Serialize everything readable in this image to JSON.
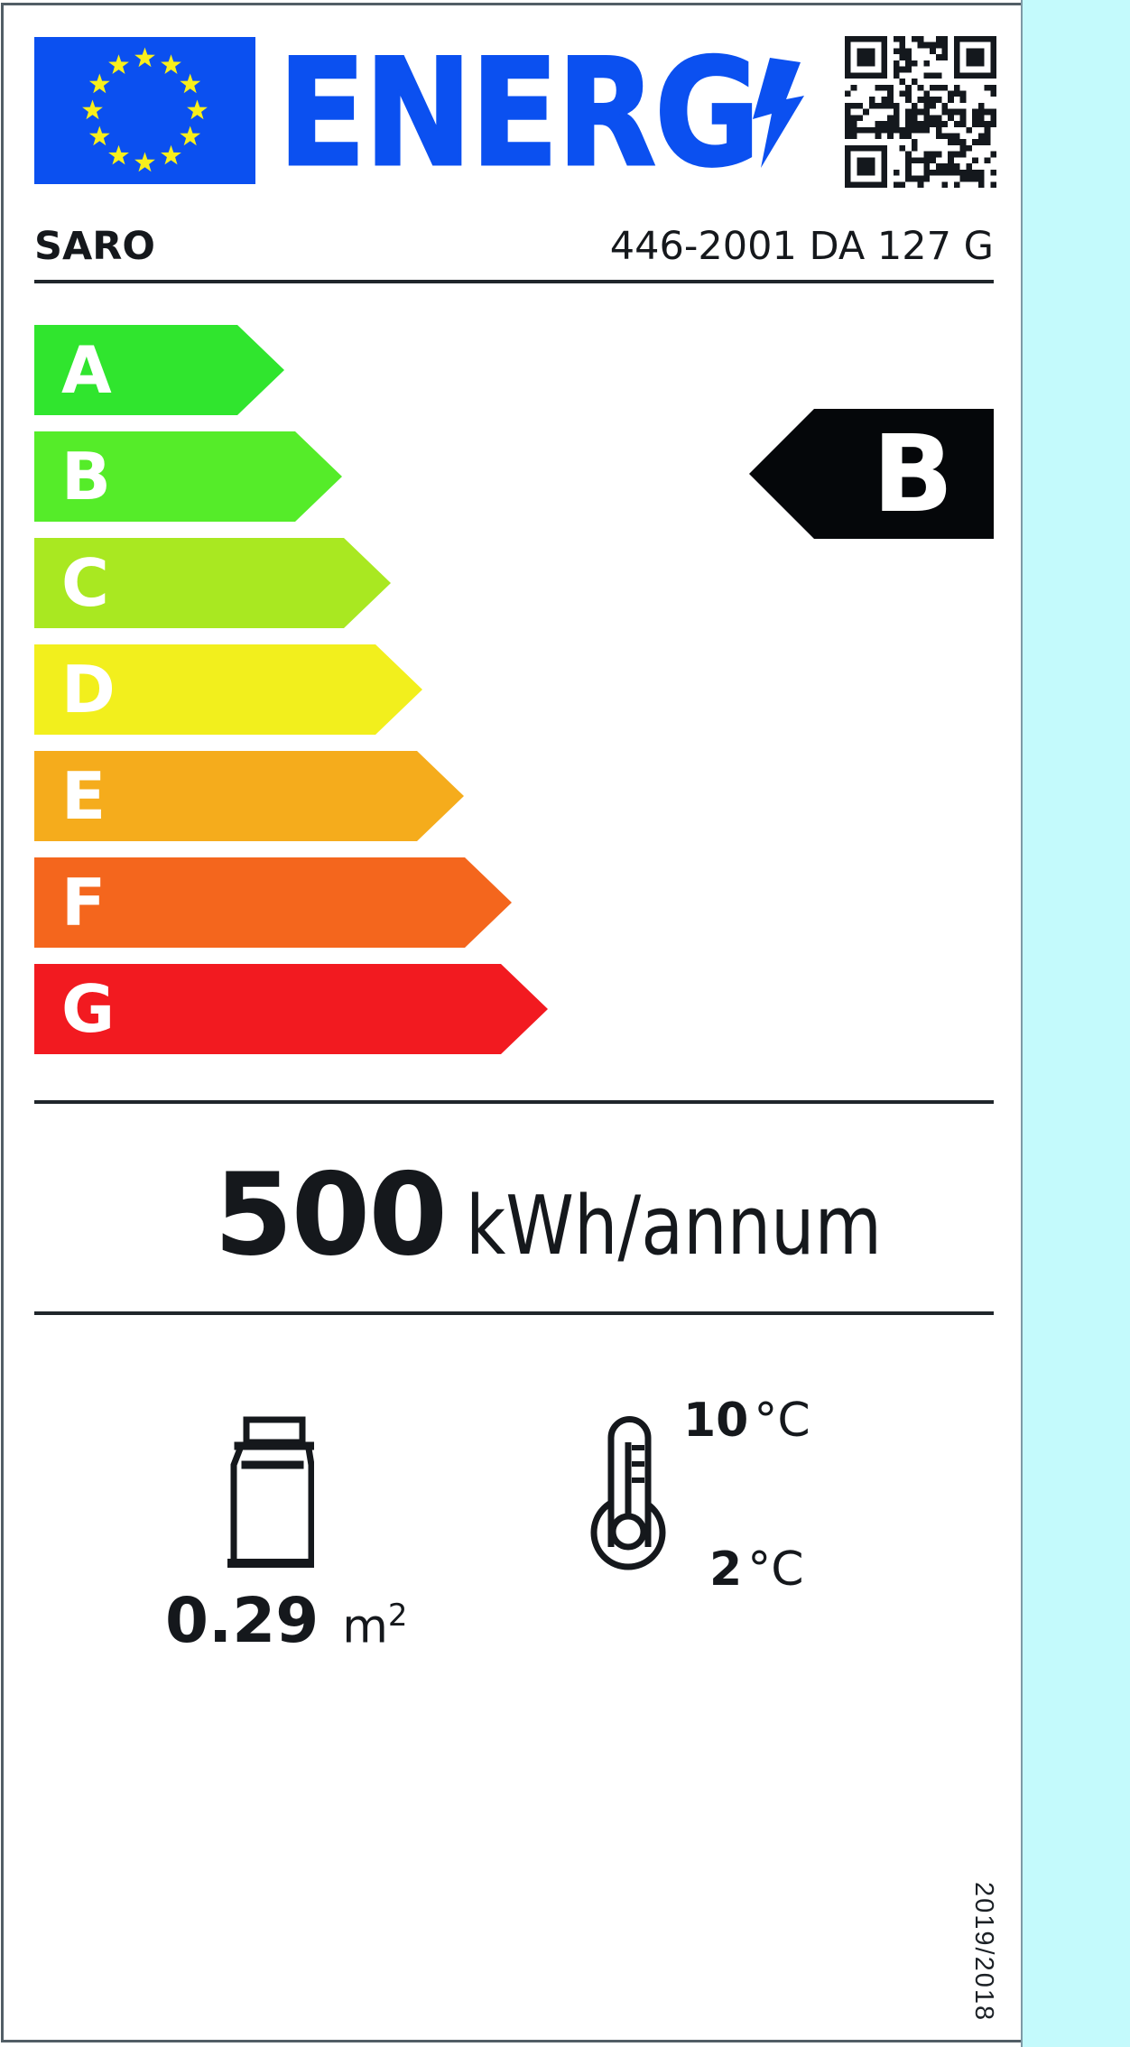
{
  "header": {
    "logo": "ENERG",
    "brand": "SARO",
    "model": "446-2001 DA 127 G"
  },
  "scale": {
    "grades": [
      {
        "letter": "A",
        "color": "#30E52E"
      },
      {
        "letter": "B",
        "color": "#55EC29"
      },
      {
        "letter": "C",
        "color": "#A9E821"
      },
      {
        "letter": "D",
        "color": "#F2EF1D"
      },
      {
        "letter": "E",
        "color": "#F5AC1C"
      },
      {
        "letter": "F",
        "color": "#F4661D"
      },
      {
        "letter": "G",
        "color": "#F21A20"
      }
    ],
    "current_grade": "B"
  },
  "energy": {
    "value": "500",
    "unit": "kWh/annum"
  },
  "metrics": {
    "display_area": {
      "value": "0.29",
      "unit": "m",
      "sup": "2"
    },
    "temp_max": {
      "value": "10",
      "unit": "°C"
    },
    "temp_min": {
      "value": "2",
      "unit": "°C"
    }
  },
  "footer": {
    "regulation": "2019/2018"
  },
  "icons": {
    "flag": "eu-flag",
    "logo_bolt": "lightning-bolt",
    "qr": "qr-code",
    "area": "bottle",
    "temperature": "thermometer"
  },
  "colors": {
    "logo_blue": "#0B50F0",
    "flag_blue": "#0B50F0",
    "star_yellow": "#F8EF1B",
    "strip_cyan": "#C4FAFC",
    "rating_black": "#05070A",
    "ink": "#15181C"
  }
}
